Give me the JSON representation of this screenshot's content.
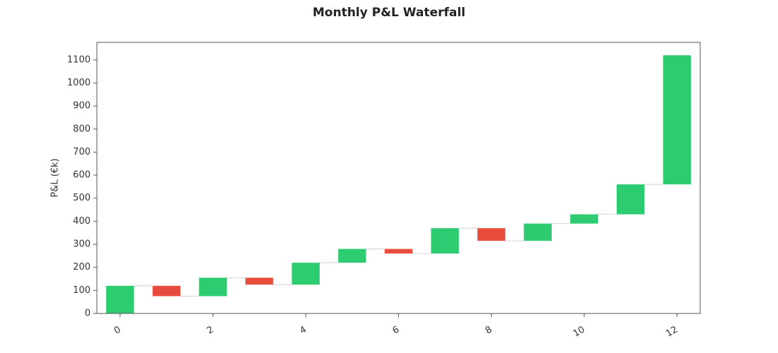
{
  "chart_data": {
    "type": "waterfall",
    "title": "Monthly P&L Waterfall",
    "y_label": "P&L (€k)",
    "x": [
      0,
      1,
      2,
      3,
      4,
      5,
      6,
      7,
      8,
      9,
      10,
      11,
      12
    ],
    "values": [
      120,
      -45,
      80,
      -30,
      95,
      60,
      -20,
      110,
      -55,
      75,
      40,
      130,
      560
    ],
    "colors": {
      "increase": "#2ecc71",
      "decrease": "#e74c3c"
    },
    "xlim": [
      -0.5,
      12.5
    ],
    "xticks": [
      0,
      2,
      4,
      6,
      8,
      10,
      12
    ],
    "ylim": [
      0,
      1176
    ],
    "yticks": [
      0,
      100,
      200,
      300,
      400,
      500,
      600,
      700,
      800,
      900,
      1000,
      1100
    ]
  }
}
